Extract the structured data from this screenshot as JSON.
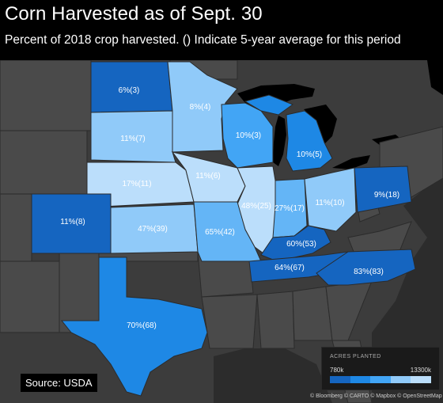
{
  "title": "Corn Harvested as of Sept. 30",
  "subtitle": "Percent of 2018 crop harvested. () Indicate 5-year average for this period",
  "source": "Source: USDA",
  "legend": {
    "title": "ACRES PLANTED",
    "min_label": "780k",
    "max_label": "13300k",
    "colors": [
      "#1565c0",
      "#1e88e5",
      "#42a5f5",
      "#90caf9",
      "#bbdefb"
    ]
  },
  "attribution": "© Bloomberg © CARTO © Mapbox © OpenStreetMap",
  "states": [
    {
      "name": "North Dakota",
      "label": "6%(3)"
    },
    {
      "name": "Minnesota",
      "label": "8%(4)"
    },
    {
      "name": "South Dakota",
      "label": "11%(7)"
    },
    {
      "name": "Wisconsin",
      "label": "10%(3)"
    },
    {
      "name": "Michigan",
      "label": "10%(5)"
    },
    {
      "name": "Nebraska",
      "label": "17%(11)"
    },
    {
      "name": "Iowa",
      "label": "11%(6)"
    },
    {
      "name": "Illinois",
      "label": "48%(25)"
    },
    {
      "name": "Indiana",
      "label": "27%(17)"
    },
    {
      "name": "Ohio",
      "label": "11%(10)"
    },
    {
      "name": "Pennsylvania",
      "label": "9%(18)"
    },
    {
      "name": "Colorado",
      "label": "11%(8)"
    },
    {
      "name": "Kansas",
      "label": "47%(39)"
    },
    {
      "name": "Missouri",
      "label": "65%(42)"
    },
    {
      "name": "Kentucky",
      "label": "60%(53)"
    },
    {
      "name": "Tennessee",
      "label": "64%(67)"
    },
    {
      "name": "North Carolina",
      "label": "83%(83)"
    },
    {
      "name": "Texas",
      "label": "70%(68)"
    }
  ]
}
